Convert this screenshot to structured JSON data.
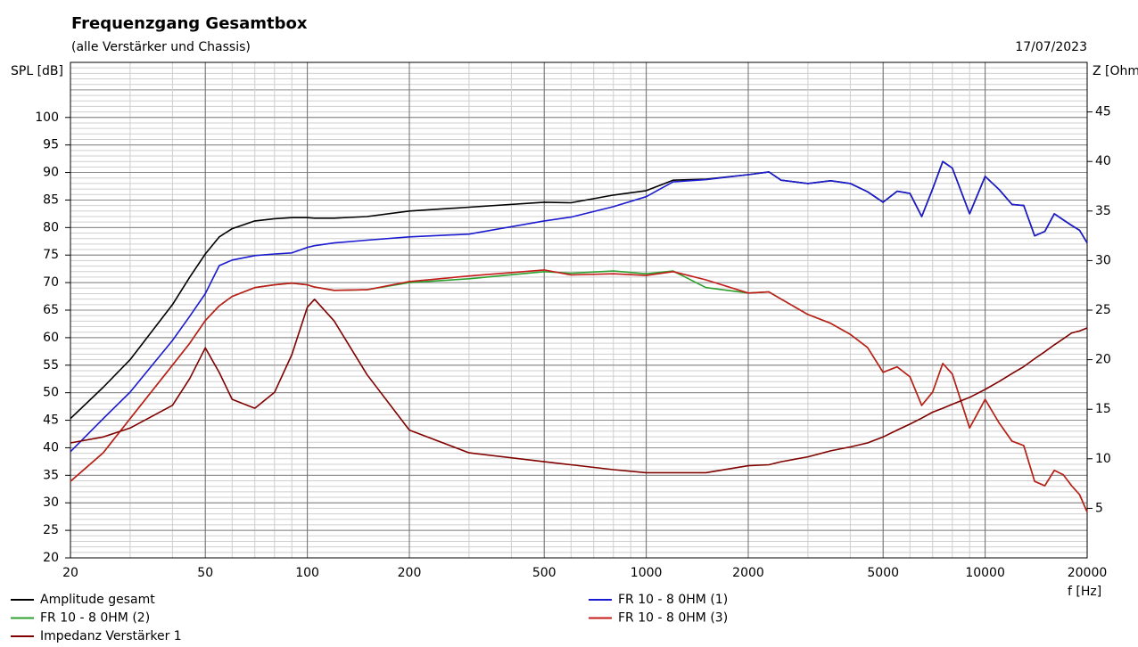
{
  "chart_data": {
    "type": "line",
    "title": "Frequenzgang Gesamtbox",
    "subtitle": "(alle Verstärker und Chassis)",
    "date": "17/07/2023",
    "y_label": "SPL [dB]",
    "y2_label": "Z [Ohm]",
    "x_label": "f [Hz]",
    "x_log": true,
    "grid": true,
    "xlim": [
      20,
      20000
    ],
    "xticks": [
      20,
      50,
      100,
      200,
      500,
      1000,
      2000,
      5000,
      10000,
      20000
    ],
    "ylim": [
      20,
      110
    ],
    "yticks": [
      20,
      25,
      30,
      35,
      40,
      45,
      50,
      55,
      60,
      65,
      70,
      75,
      80,
      85,
      90,
      95,
      100
    ],
    "y2lim": [
      0,
      50
    ],
    "y2ticks": [
      5,
      10,
      15,
      20,
      25,
      30,
      35,
      40,
      45
    ],
    "x": [
      20,
      25,
      30,
      40,
      45,
      50,
      55,
      60,
      70,
      80,
      90,
      100,
      105,
      120,
      150,
      200,
      300,
      500,
      600,
      800,
      1000,
      1200,
      1500,
      2000,
      2300,
      2500,
      3000,
      3500,
      4000,
      4500,
      5000,
      5500,
      6000,
      6500,
      7000,
      7500,
      8000,
      9000,
      10000,
      11000,
      12000,
      13000,
      14000,
      15000,
      16000,
      17000,
      18000,
      19000,
      20000
    ],
    "series": [
      {
        "name": "Amplitude gesamt",
        "color": "#000000",
        "values": [
          45.3,
          51,
          56,
          66,
          71,
          75.2,
          78.3,
          79.8,
          81.2,
          81.6,
          81.8,
          81.8,
          81.7,
          81.7,
          82,
          83,
          83.7,
          84.6,
          84.5,
          85.9,
          86.7,
          88.6,
          88.8,
          89.6,
          90.1,
          88.6,
          88,
          88.5,
          88,
          86.5,
          84.6,
          86.6,
          86.2,
          82,
          87,
          92,
          90.8,
          82.5,
          89.3,
          86.9,
          84.2,
          84,
          78.5,
          79.3,
          82.5,
          81.4,
          80.4,
          79.5,
          77.2
        ]
      },
      {
        "name": "FR 10 - 8 0HM (1)",
        "color": "#1a1ad0",
        "values": [
          39.3,
          45.3,
          50.1,
          59.5,
          63.9,
          68,
          73.1,
          74.1,
          74.9,
          75.2,
          75.4,
          76.4,
          76.7,
          77.2,
          77.7,
          78.3,
          78.8,
          81.2,
          81.9,
          83.8,
          85.6,
          88.3,
          88.7,
          89.6,
          90.1,
          88.6,
          88,
          88.5,
          88,
          86.5,
          84.6,
          86.6,
          86.2,
          82,
          87,
          92,
          90.8,
          82.5,
          89.3,
          86.9,
          84.2,
          84,
          78.5,
          79.3,
          82.5,
          81.4,
          80.4,
          79.5,
          77.2
        ]
      },
      {
        "name": "FR 10 - 8 0HM (2)",
        "color": "#2ca02c",
        "values": [
          33.9,
          39.1,
          45.3,
          55,
          59,
          63.1,
          65.8,
          67.5,
          69.1,
          69.6,
          69.9,
          69.6,
          69.2,
          68.6,
          68.7,
          70,
          70.7,
          72,
          71.7,
          72.1,
          71.6,
          72.1,
          69.1,
          68.1,
          68.3,
          67,
          64.2,
          62.6,
          60.6,
          58.2,
          53.7,
          54.7,
          52.9,
          47.7,
          50.1,
          55.3,
          53.4,
          43.6,
          48.8,
          44.5,
          41.2,
          40.4,
          33.9,
          33.1,
          35.9,
          35.1,
          33.1,
          31.5,
          28.3
        ]
      },
      {
        "name": "FR 10 - 8 0HM (3)",
        "color": "#c41a1a",
        "values": [
          33.9,
          39.1,
          45.3,
          55,
          59,
          63.1,
          65.8,
          67.5,
          69.1,
          69.6,
          69.9,
          69.6,
          69.2,
          68.6,
          68.7,
          70.2,
          71.2,
          72.3,
          71.4,
          71.6,
          71.3,
          72,
          70.5,
          68.1,
          68.3,
          67,
          64.2,
          62.6,
          60.6,
          58.2,
          53.7,
          54.7,
          52.9,
          47.7,
          50.1,
          55.3,
          53.4,
          43.6,
          48.8,
          44.5,
          41.2,
          40.4,
          33.9,
          33.1,
          35.9,
          35.1,
          33.1,
          31.5,
          28.3
        ]
      },
      {
        "name": "Impedanz Verstärker 1",
        "color": "#800000",
        "axis": "y2",
        "values": [
          11.6,
          12.2,
          13.1,
          15.4,
          18.1,
          21.2,
          18.7,
          16,
          15.1,
          16.7,
          20.5,
          25.3,
          26.1,
          23.9,
          18.5,
          12.9,
          10.6,
          9.7,
          9.4,
          8.9,
          8.6,
          8.6,
          8.6,
          9.3,
          9.4,
          9.7,
          10.2,
          10.8,
          11.2,
          11.6,
          12.2,
          12.9,
          13.5,
          14.1,
          14.7,
          15.1,
          15.5,
          16.2,
          17,
          17.8,
          18.6,
          19.3,
          20.1,
          20.8,
          21.5,
          22.1,
          22.7,
          22.9,
          23.2
        ]
      }
    ]
  }
}
